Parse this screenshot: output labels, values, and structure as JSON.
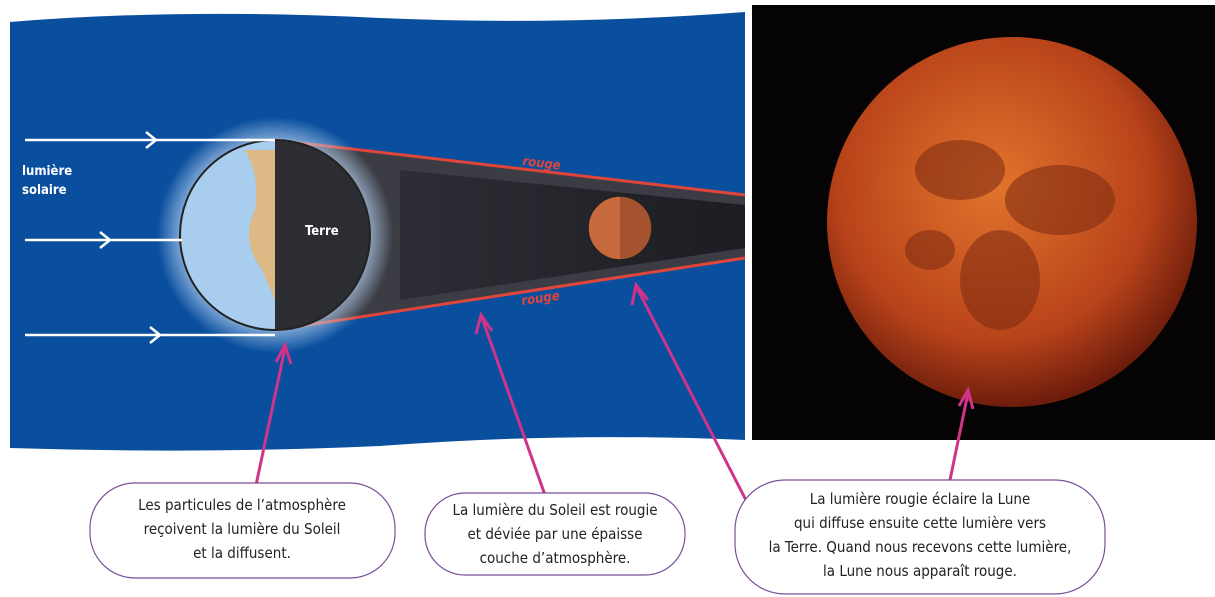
{
  "diagram": {
    "labels": {
      "sunlight": [
        "lumière",
        "solaire"
      ],
      "earth": "Terre",
      "red_top": "rouge",
      "red_bottom": "rouge"
    },
    "captions": [
      {
        "lines": [
          "Les particules de l’atmosphère",
          "reçoivent la lumière du Soleil",
          "et la diffusent."
        ]
      },
      {
        "lines": [
          "La lumière du Soleil est rougie",
          "et déviée par une épaisse",
          "couche d’atmosphère."
        ]
      },
      {
        "lines": [
          "La lumière rougie éclaire la Lune",
          "qui diffuse ensuite cette lumière vers",
          "la Terre. Quand nous recevons cette lumière,",
          "la Lune nous apparaît rouge."
        ]
      }
    ]
  }
}
